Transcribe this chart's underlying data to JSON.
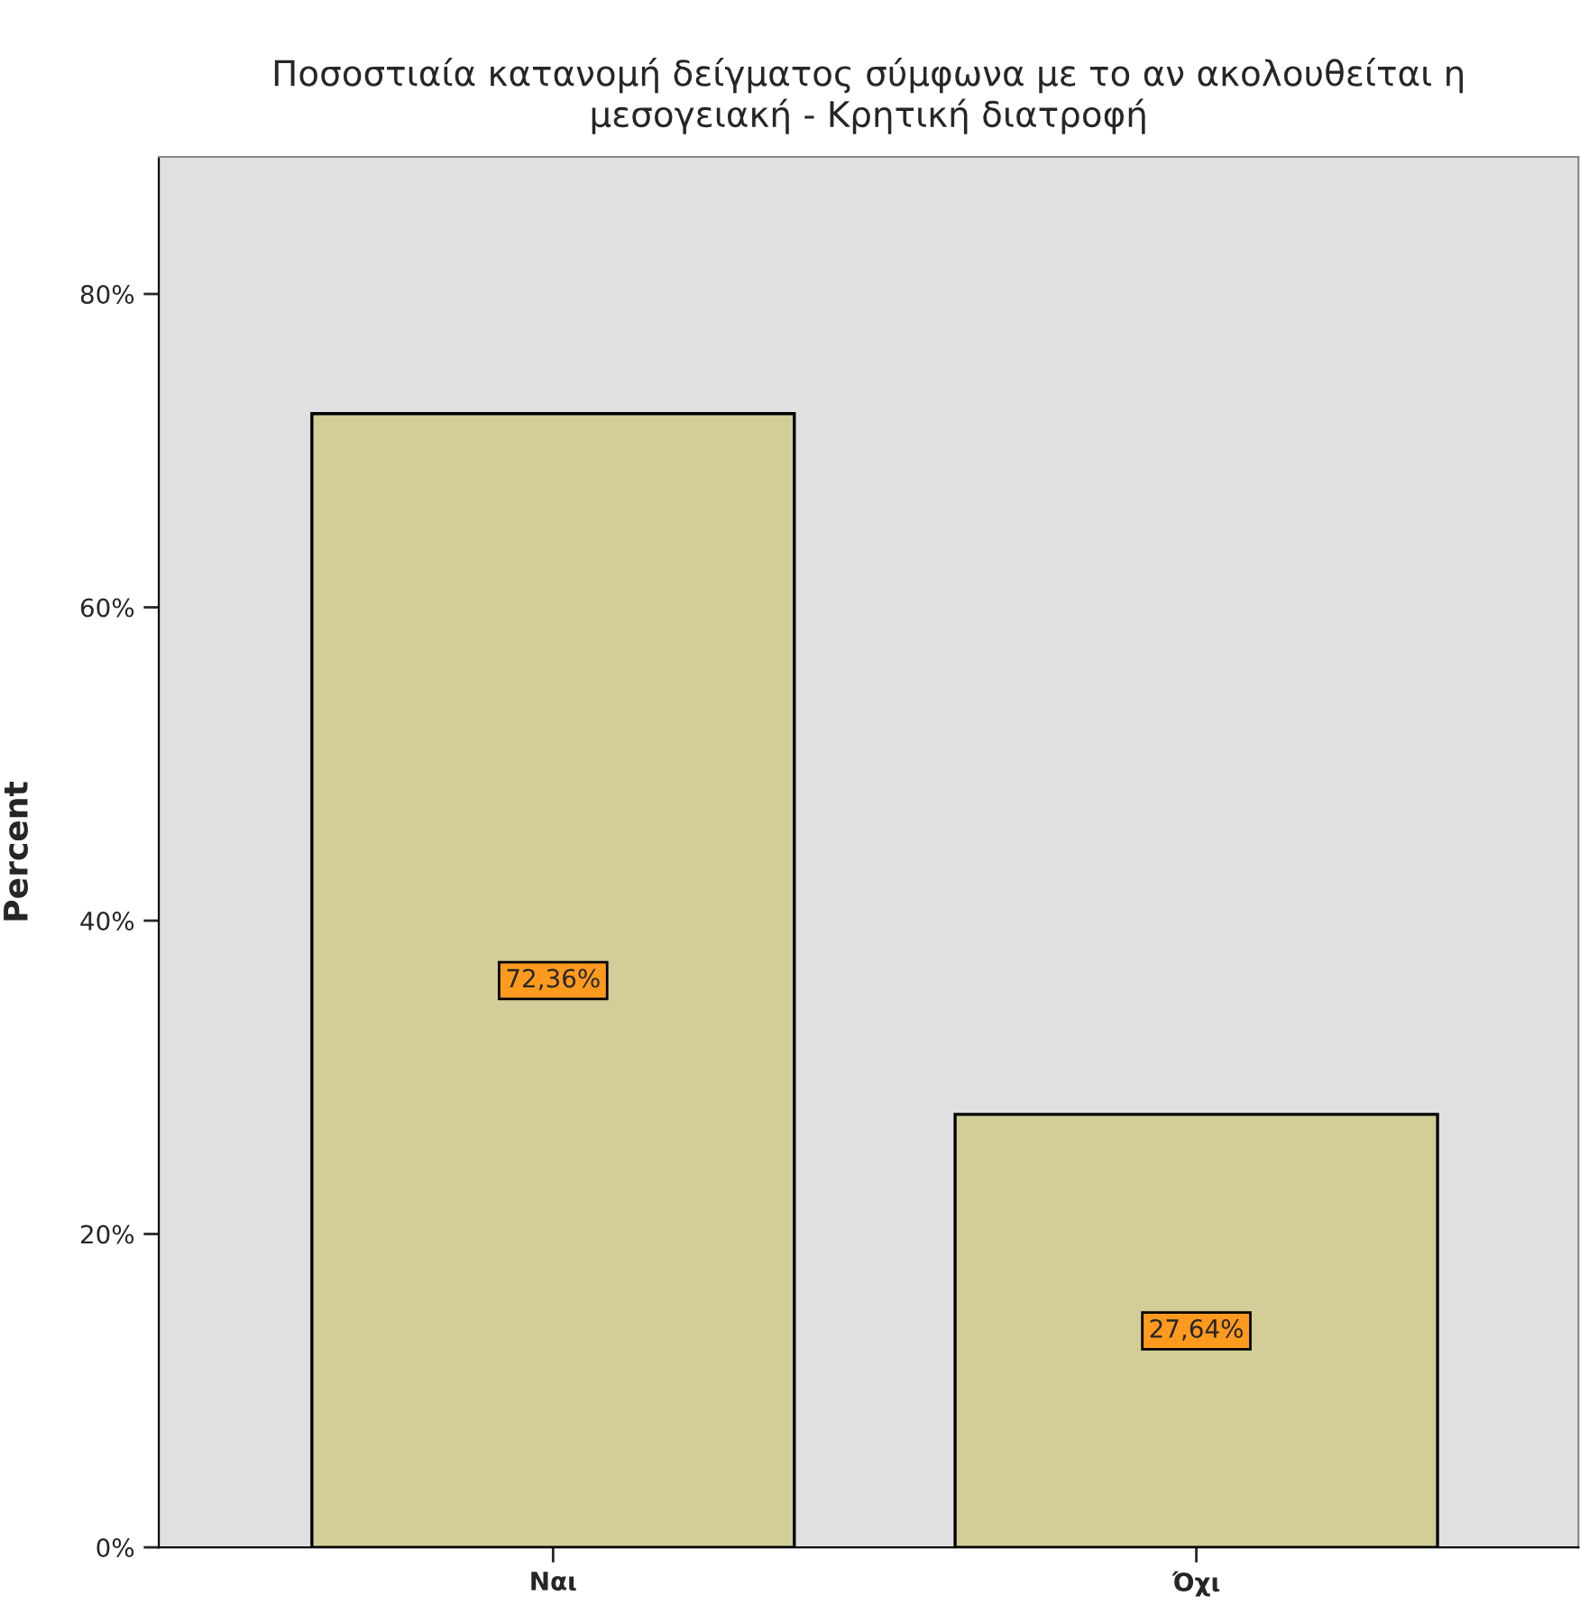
{
  "chart_data": {
    "type": "bar",
    "title": "Ποσοστιαία κατανομή δείγματος σύμφωνα με το αν ακολουθείται η\nμεσογειακή - Κρητική διατροφή",
    "ylabel": "Percent",
    "categories": [
      "Ναι",
      "Όχι"
    ],
    "values": [
      72.36,
      27.64
    ],
    "value_labels": [
      "72,36%",
      "27,64%"
    ],
    "color": "#d3ce97",
    "ylim": [
      0,
      88.75
    ],
    "yticks": [
      {
        "value": 0,
        "label": "0%"
      },
      {
        "value": 20,
        "label": "20%"
      },
      {
        "value": 40,
        "label": "40%"
      },
      {
        "value": 60,
        "label": "60%"
      },
      {
        "value": 80,
        "label": "80%"
      }
    ],
    "grid": false,
    "legend": false
  }
}
